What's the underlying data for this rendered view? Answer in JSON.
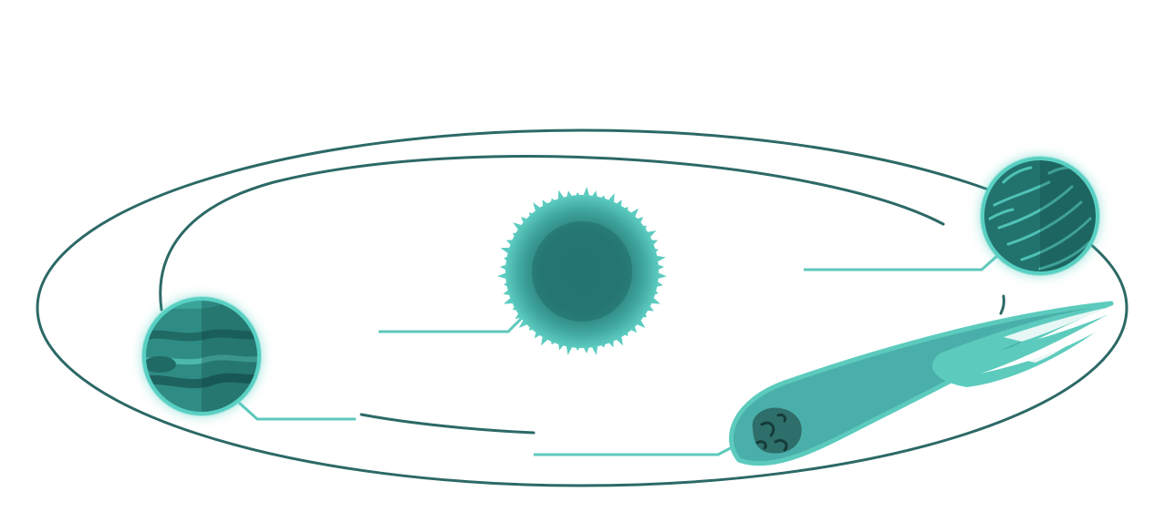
{
  "diagram": {
    "title": "",
    "labels": {
      "star": "",
      "planet_left": "",
      "planet_right": "",
      "comet": ""
    }
  },
  "colors": {
    "orbit": "#2c6966",
    "leader": "#5ec8bc",
    "star_core": "#257572",
    "star_glow": "#5ccbc0",
    "planet_left_fill": "#2f8c84",
    "planet_right_fill": "#22726e",
    "planet_rim": "#58d0c3",
    "comet_tail": "#4aafab",
    "comet_tail_light": "#5ccbbd",
    "comet_nucleus": "#2e6f6b"
  },
  "icons": {
    "star": "star-icon",
    "planet_left": "banded-planet-icon",
    "planet_right": "streaked-planet-icon",
    "comet": "comet-icon"
  }
}
